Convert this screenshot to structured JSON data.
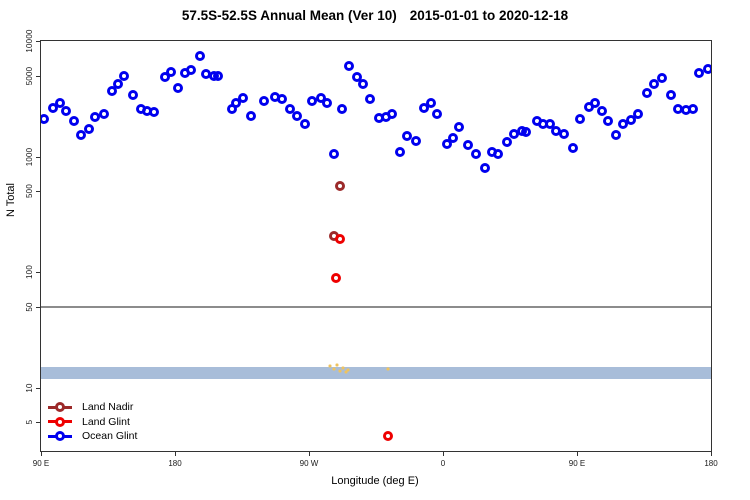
{
  "title_left": "57.5S-52.5S Annual Mean (Ver 10)",
  "title_right": "2015-01-01 to 2020-12-18",
  "chart_data": {
    "type": "scatter",
    "title": "57.5S-52.5S Annual Mean (Ver 10)  2015-01-01 to 2020-12-18",
    "xlabel": "Longitude (deg E)",
    "ylabel": "N Total",
    "x_axis": {
      "min": 90,
      "max": 540,
      "tick_values": [
        90,
        180,
        270,
        360,
        450,
        540
      ],
      "tick_labels": [
        "90 E",
        "180",
        "90 W",
        "0",
        "90 E",
        "180"
      ]
    },
    "y_axis": {
      "scale": "log",
      "min": 2.82,
      "max": 10000,
      "tick_values": [
        10000,
        5000,
        1000,
        500,
        100,
        50,
        10,
        5
      ],
      "tick_labels": [
        "10000",
        "5000",
        "1000",
        "500",
        "100",
        "50",
        "10",
        "5"
      ]
    },
    "reference_line": {
      "value": 50,
      "color": "#8c8c8c"
    },
    "band": {
      "from": 11.9,
      "to": 15.1,
      "color": "#a8bdd9"
    },
    "legend": [
      {
        "label": "Land Nadir",
        "color": "#9c2a2a"
      },
      {
        "label": "Land Glint",
        "color": "#ee0000"
      },
      {
        "label": "Ocean Glint",
        "color": "#0000ee"
      }
    ],
    "series": [
      {
        "name": "Land Nadir",
        "color": "#9c2a2a",
        "marker": "open-circle",
        "points": [
          [
            291,
            555
          ],
          [
            287,
            205
          ]
        ]
      },
      {
        "name": "Land Glint",
        "color": "#ee0000",
        "marker": "open-circle",
        "points": [
          [
            291,
            192
          ],
          [
            288,
            89
          ],
          [
            323,
            3.8
          ]
        ]
      },
      {
        "name": "unlabeled-orange-markers",
        "color": "#efc35e",
        "marker": "small-dot",
        "points": [
          [
            284,
            15.4
          ],
          [
            287,
            14.5
          ],
          [
            289,
            15.8
          ],
          [
            291,
            13.9
          ],
          [
            293,
            14.8
          ],
          [
            295,
            13.7
          ],
          [
            296,
            14.2
          ],
          [
            323,
            14.5
          ]
        ]
      },
      {
        "name": "Ocean Glint",
        "color": "#0000ee",
        "marker": "open-circle",
        "points": [
          [
            92,
            2100
          ],
          [
            98,
            2640
          ],
          [
            103,
            2920
          ],
          [
            107,
            2480
          ],
          [
            112,
            2030
          ],
          [
            117,
            1530
          ],
          [
            122,
            1720
          ],
          [
            126,
            2200
          ],
          [
            132,
            2320
          ],
          [
            138,
            3690
          ],
          [
            142,
            4270
          ],
          [
            146,
            4980
          ],
          [
            152,
            3390
          ],
          [
            157,
            2590
          ],
          [
            161,
            2480
          ],
          [
            166,
            2440
          ],
          [
            173,
            4880
          ],
          [
            177,
            5420
          ],
          [
            182,
            3940
          ],
          [
            187,
            5320
          ],
          [
            191,
            5580
          ],
          [
            197,
            7420
          ],
          [
            201,
            5150
          ],
          [
            206,
            4980
          ],
          [
            209,
            4980
          ],
          [
            218,
            2560
          ],
          [
            221,
            2920
          ],
          [
            226,
            3230
          ],
          [
            231,
            2240
          ],
          [
            240,
            3020
          ],
          [
            247,
            3270
          ],
          [
            252,
            3130
          ],
          [
            257,
            2560
          ],
          [
            262,
            2240
          ],
          [
            267,
            1920
          ],
          [
            272,
            3020
          ],
          [
            278,
            3190
          ],
          [
            282,
            2890
          ],
          [
            292,
            2560
          ],
          [
            287,
            1060
          ],
          [
            297,
            6070
          ],
          [
            302,
            4880
          ],
          [
            306,
            4220
          ],
          [
            311,
            3160
          ],
          [
            317,
            2170
          ],
          [
            322,
            2200
          ],
          [
            326,
            2350
          ],
          [
            331,
            1100
          ],
          [
            336,
            1500
          ],
          [
            342,
            1360
          ],
          [
            347,
            2640
          ],
          [
            352,
            2920
          ],
          [
            356,
            2350
          ],
          [
            363,
            1280
          ],
          [
            367,
            1450
          ],
          [
            371,
            1800
          ],
          [
            377,
            1260
          ],
          [
            382,
            1050
          ],
          [
            388,
            795
          ],
          [
            393,
            1090
          ],
          [
            397,
            1050
          ],
          [
            403,
            1340
          ],
          [
            408,
            1570
          ],
          [
            413,
            1660
          ],
          [
            416,
            1630
          ],
          [
            423,
            2030
          ],
          [
            427,
            1900
          ],
          [
            432,
            1920
          ],
          [
            436,
            1660
          ],
          [
            441,
            1580
          ],
          [
            447,
            1180
          ],
          [
            452,
            2100
          ],
          [
            458,
            2680
          ],
          [
            462,
            2920
          ],
          [
            467,
            2480
          ],
          [
            471,
            2030
          ],
          [
            476,
            1540
          ],
          [
            481,
            1900
          ],
          [
            486,
            2060
          ],
          [
            491,
            2350
          ],
          [
            497,
            3530
          ],
          [
            502,
            4220
          ],
          [
            507,
            4810
          ],
          [
            513,
            3390
          ],
          [
            518,
            2590
          ],
          [
            523,
            2530
          ],
          [
            528,
            2560
          ],
          [
            532,
            5250
          ],
          [
            538,
            5760
          ]
        ]
      }
    ]
  }
}
